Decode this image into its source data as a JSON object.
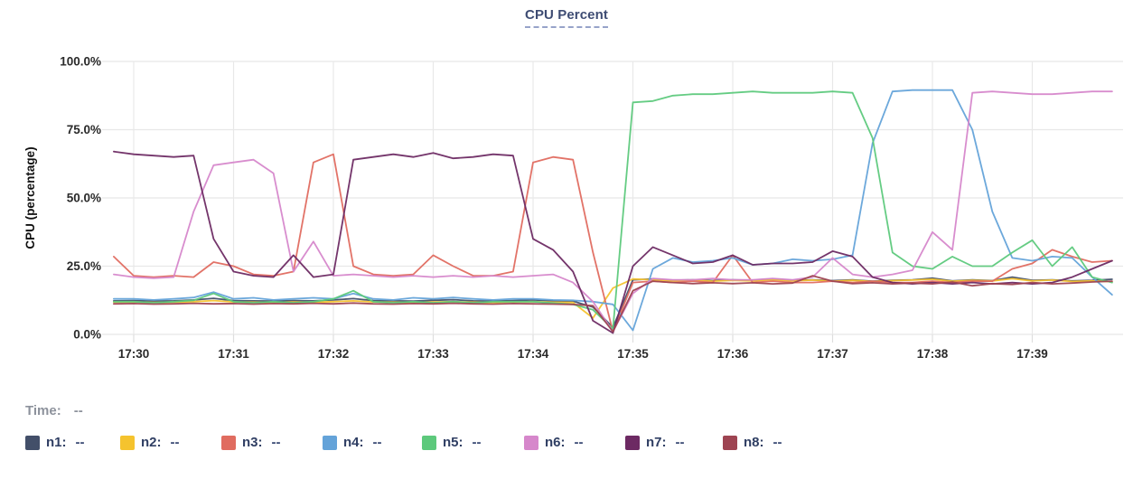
{
  "title": "CPU Percent",
  "status_bar": {
    "time_label": "Time:",
    "time_value": "--"
  },
  "legend": {
    "items": [
      {
        "label": "n1:",
        "value": "--",
        "color": "#434f69"
      },
      {
        "label": "n2:",
        "value": "--",
        "color": "#f5c32e"
      },
      {
        "label": "n3:",
        "value": "--",
        "color": "#e06c60"
      },
      {
        "label": "n4:",
        "value": "--",
        "color": "#64a3d9"
      },
      {
        "label": "n5:",
        "value": "--",
        "color": "#5dc97c"
      },
      {
        "label": "n6:",
        "value": "--",
        "color": "#d687cb"
      },
      {
        "label": "n7:",
        "value": "--",
        "color": "#6d2a63"
      },
      {
        "label": "n8:",
        "value": "--",
        "color": "#9e4452"
      }
    ]
  },
  "colors": {
    "grid": "#e8e8e8",
    "tick_stub": "#dedede",
    "axis_text": "#2a2a2a",
    "title": "#3e4c73"
  },
  "chart_data": {
    "type": "line",
    "title": "CPU Percent",
    "xlabel": "",
    "ylabel": "CPU (percentage)",
    "ylim": [
      0,
      100
    ],
    "xlim": [
      29.7,
      39.9
    ],
    "grid": true,
    "legend_position": "bottom",
    "x_unit": "minutes after 17:00",
    "x_ticks": [
      {
        "v": 30,
        "label": "17:30"
      },
      {
        "v": 31,
        "label": "17:31"
      },
      {
        "v": 32,
        "label": "17:32"
      },
      {
        "v": 33,
        "label": "17:33"
      },
      {
        "v": 34,
        "label": "17:34"
      },
      {
        "v": 35,
        "label": "17:35"
      },
      {
        "v": 36,
        "label": "17:36"
      },
      {
        "v": 37,
        "label": "17:37"
      },
      {
        "v": 38,
        "label": "17:38"
      },
      {
        "v": 39,
        "label": "17:39"
      }
    ],
    "y_ticks": [
      {
        "v": 0,
        "label": "0.0%"
      },
      {
        "v": 25,
        "label": "25.0%"
      },
      {
        "v": 50,
        "label": "50.0%"
      },
      {
        "v": 75,
        "label": "75.0%"
      },
      {
        "v": 100,
        "label": "100.0%"
      }
    ],
    "x": [
      29.8,
      30,
      30.2,
      30.4,
      30.6,
      30.8,
      31,
      31.2,
      31.4,
      31.6,
      31.8,
      32,
      32.2,
      32.4,
      32.6,
      32.8,
      33,
      33.2,
      33.4,
      33.6,
      33.8,
      34,
      34.2,
      34.4,
      34.6,
      34.8,
      35,
      35.2,
      35.4,
      35.6,
      35.8,
      36,
      36.2,
      36.4,
      36.6,
      36.8,
      37,
      37.2,
      37.4,
      37.6,
      37.8,
      38,
      38.2,
      38.4,
      38.6,
      38.8,
      39,
      39.2,
      39.4,
      39.6,
      39.8
    ],
    "series": [
      {
        "name": "n1",
        "color": "#434f69",
        "values": [
          12.3,
          12.4,
          12.2,
          12.3,
          12.6,
          13.2,
          12.4,
          12.3,
          12.2,
          12.4,
          12.3,
          12.6,
          13.1,
          12.4,
          12.3,
          12.2,
          12.5,
          12.7,
          12.3,
          12.2,
          12.4,
          12.6,
          12.3,
          12.2,
          10,
          2.5,
          20,
          20.3,
          19.8,
          20,
          19.7,
          20,
          19.8,
          20.3,
          19.8,
          20,
          19.7,
          20,
          19.5,
          19.8,
          20,
          20.6,
          19.6,
          20,
          19.7,
          21,
          19.8,
          20,
          19.6,
          19.8,
          20.2
        ]
      },
      {
        "name": "n2",
        "color": "#f5c32e",
        "values": [
          11.8,
          11.9,
          11.7,
          11.8,
          12,
          12.4,
          11.9,
          11.8,
          11.7,
          11.9,
          11.8,
          12,
          12.3,
          11.9,
          11.8,
          11.7,
          11.9,
          12,
          11.8,
          11.7,
          11.9,
          12,
          11.8,
          11.7,
          6,
          17,
          20.3,
          20,
          19.6,
          19.9,
          19.5,
          19.8,
          19.6,
          20,
          19.6,
          19.9,
          19.5,
          19.8,
          19.4,
          19.7,
          19.9,
          20.2,
          19.5,
          19.8,
          19.6,
          20.4,
          19.6,
          19.9,
          19.4,
          19.6,
          19.3
        ]
      },
      {
        "name": "n3",
        "color": "#e06c60",
        "values": [
          28.5,
          21.5,
          21,
          21.5,
          21,
          26.5,
          25,
          22,
          21.5,
          23,
          63,
          66,
          25,
          22,
          21.5,
          22,
          29,
          25,
          21.5,
          21.5,
          23,
          63,
          65,
          64,
          30,
          1,
          19,
          19.5,
          19,
          19.5,
          19,
          29,
          19,
          19.5,
          19,
          19,
          19.5,
          19,
          19.5,
          19,
          19,
          19.5,
          19,
          19.5,
          19.5,
          24,
          26,
          31,
          28.5,
          26.5,
          27
        ]
      },
      {
        "name": "n4",
        "color": "#64a3d9",
        "values": [
          13,
          13,
          12.6,
          13,
          13.5,
          15.5,
          13,
          13.4,
          12.6,
          13,
          13.4,
          13,
          15,
          13,
          12.6,
          13.4,
          13,
          13.5,
          13,
          12.6,
          13,
          13,
          12.6,
          12.5,
          12,
          11,
          1.5,
          24,
          28,
          26.5,
          27,
          28,
          25.5,
          26,
          27.5,
          27,
          27.5,
          29,
          70,
          89,
          89.5,
          89.5,
          89.5,
          75,
          45,
          28,
          27,
          28.5,
          28,
          21,
          14.5
        ]
      },
      {
        "name": "n5",
        "color": "#5dc97c",
        "values": [
          12,
          12,
          11.6,
          12,
          12.5,
          15,
          12,
          11.6,
          12,
          11.6,
          12,
          13,
          16,
          12,
          11.6,
          12,
          11.6,
          12,
          11.6,
          12,
          12,
          12,
          11.5,
          11,
          9,
          2,
          85,
          85.5,
          87.5,
          88,
          88,
          88.5,
          89,
          88.5,
          88.5,
          88.5,
          89,
          88.5,
          72,
          30,
          25,
          24,
          28.5,
          25,
          25,
          30,
          34.5,
          25,
          32,
          21,
          19
        ]
      },
      {
        "name": "n6",
        "color": "#d687cb",
        "values": [
          22,
          21,
          20.6,
          21,
          45,
          62,
          63,
          64,
          59,
          23,
          34,
          21.5,
          22,
          21.5,
          21,
          21.5,
          21,
          21.5,
          21,
          21.5,
          21,
          21.5,
          22,
          19,
          12,
          1,
          15,
          20.5,
          20,
          20,
          20.5,
          20,
          20,
          20.5,
          20,
          21,
          28,
          22,
          21,
          22,
          23.5,
          37.5,
          31,
          88.5,
          89,
          88.5,
          88,
          88,
          88.5,
          89,
          89
        ]
      },
      {
        "name": "n7",
        "color": "#6d2a63",
        "values": [
          67,
          66,
          65.5,
          65,
          65.5,
          35,
          23,
          21.5,
          21,
          29,
          21,
          22,
          64,
          65,
          66,
          65,
          66.5,
          64.5,
          65,
          66,
          65.5,
          35,
          31,
          23,
          5,
          0.5,
          25,
          32,
          29,
          26,
          26.5,
          29,
          25.5,
          26,
          26,
          26.5,
          30.5,
          28.5,
          21,
          19,
          18.5,
          19,
          18.5,
          19,
          18.5,
          19,
          18.5,
          19,
          21,
          24,
          27
        ]
      },
      {
        "name": "n8",
        "color": "#9e4452",
        "values": [
          11.2,
          11.3,
          11.1,
          11.2,
          11.4,
          11.2,
          11.3,
          11.1,
          11.3,
          11.2,
          11.4,
          11.2,
          11.5,
          11.2,
          11.1,
          11.3,
          11.2,
          11.4,
          11.2,
          11.1,
          11.3,
          11.2,
          11.1,
          11,
          10.5,
          1,
          16,
          19.5,
          19,
          18.6,
          18.9,
          18.6,
          18.9,
          18.5,
          18.8,
          21.5,
          19.5,
          18.6,
          18.9,
          18.5,
          18.8,
          18.5,
          19.2,
          17.8,
          18.6,
          18.3,
          19,
          18.5,
          18.8,
          19.2,
          19.5
        ]
      }
    ]
  }
}
